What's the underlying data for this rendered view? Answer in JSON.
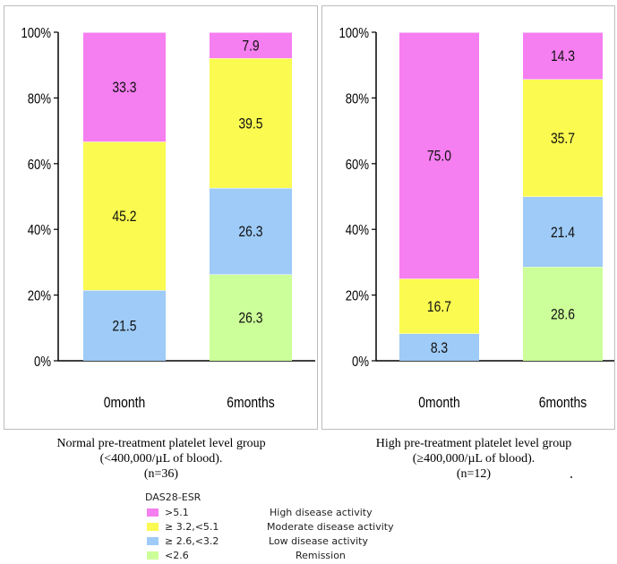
{
  "chart_data": [
    {
      "type": "bar",
      "stacked": true,
      "categories": [
        "0month",
        "6months"
      ],
      "ylim": [
        0,
        100
      ],
      "yticks": [
        "0%",
        "20%",
        "40%",
        "60%",
        "80%",
        "100%"
      ],
      "series": [
        {
          "name": "<2.6",
          "values": [
            null,
            26.3
          ],
          "labels": [
            "",
            "26.3"
          ]
        },
        {
          "name": "≥ 2.6,<3.2",
          "values": [
            21.5,
            26.3
          ],
          "labels": [
            "21.5",
            "26.3"
          ]
        },
        {
          "name": "≥ 3.2,<5.1",
          "values": [
            45.2,
            39.5
          ],
          "labels": [
            "45.2",
            "39.5"
          ]
        },
        {
          "name": ">5.1",
          "values": [
            33.3,
            7.9
          ],
          "labels": [
            "33.3",
            "7.9"
          ]
        }
      ],
      "caption": [
        "Normal pre-treatment platelet level group",
        "(<400,000/µL of blood).",
        "(n=36)"
      ]
    },
    {
      "type": "bar",
      "stacked": true,
      "categories": [
        "0month",
        "6months"
      ],
      "ylim": [
        0,
        100
      ],
      "yticks": [
        "0%",
        "20%",
        "40%",
        "60%",
        "80%",
        "100%"
      ],
      "series": [
        {
          "name": "<2.6",
          "values": [
            null,
            28.6
          ],
          "labels": [
            "",
            "28.6"
          ]
        },
        {
          "name": "≥ 2.6,<3.2",
          "values": [
            8.3,
            21.4
          ],
          "labels": [
            "8.3",
            "21.4"
          ]
        },
        {
          "name": "≥ 3.2,<5.1",
          "values": [
            16.7,
            35.7
          ],
          "labels": [
            "16.7",
            "35.7"
          ]
        },
        {
          "name": ">5.1",
          "values": [
            75.0,
            14.3
          ],
          "labels": [
            "75.0",
            "14.3"
          ]
        }
      ],
      "caption": [
        "High pre-treatment platelet level group",
        "(≥400,000/µL of blood).",
        "(n=12)"
      ]
    }
  ],
  "colors": {
    ">5.1": "#f57ef0",
    "≥ 3.2,<5.1": "#fafa50",
    "≥ 2.6,<3.2": "#9ecbf7",
    "<2.6": "#ccff99"
  },
  "legend": {
    "title": "DAS28-ESR",
    "items": [
      {
        "code": ">5.1",
        "desc": "High disease activity",
        "color": "#f57ef0"
      },
      {
        "code": "≥ 3.2,<5.1",
        "desc": "Moderate disease activity",
        "color": "#fafa50"
      },
      {
        "code": "≥ 2.6,<3.2",
        "desc": "Low disease activity",
        "color": "#9ecbf7"
      },
      {
        "code": "<2.6",
        "desc": "Remission",
        "color": "#ccff99"
      }
    ]
  }
}
